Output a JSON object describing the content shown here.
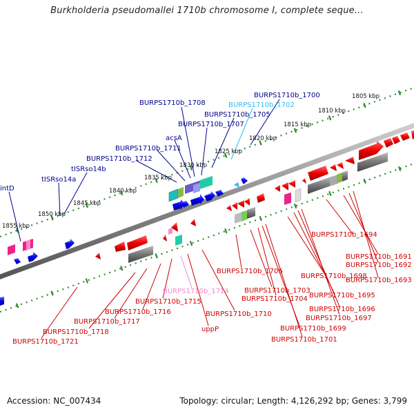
{
  "title": "Burkholderia pseudomallei 1710b chromosome I, complete seque...",
  "footer": {
    "accession": "Accession: NC_007434",
    "summary": "Topology: circular; Length: 4,126,292 bp; Genes: 3,799"
  },
  "colors": {
    "backbone": "#8a8a8a",
    "ticks": "#2e8b2e",
    "forward_gene": "#0000dd",
    "reverse_gene": "#ee0000",
    "label_blue": "#00008b",
    "label_cyan": "#33bbee",
    "label_red": "#cc0000",
    "label_pink": "#ee88cc"
  },
  "scale_labels": [
    "1805 kbp",
    "1810 kbp",
    "1815 kbp",
    "1820 kbp",
    "1825 kbp",
    "1830 kbp",
    "1835 kbp",
    "1840 kbp",
    "1845 kbp",
    "1850 kbp",
    "1855 kbp"
  ],
  "top_labels": [
    {
      "text": "BURPS1710b_1700",
      "color": "blue"
    },
    {
      "text": "BURPS1710b_1702",
      "color": "cyan"
    },
    {
      "text": "BURPS1710b_1705",
      "color": "blue"
    },
    {
      "text": "BURPS1710b_1708",
      "color": "blue"
    },
    {
      "text": "BURPS1710b_1707",
      "color": "blue"
    },
    {
      "text": "acsA",
      "color": "blue"
    },
    {
      "text": "BURPS1710b_1711",
      "color": "blue"
    },
    {
      "text": "BURPS1710b_1712",
      "color": "blue"
    },
    {
      "text": "tISRso14b",
      "color": "blue"
    },
    {
      "text": "tISRso14a",
      "color": "blue"
    },
    {
      "text": "intD",
      "color": "blue"
    }
  ],
  "bottom_labels": [
    {
      "text": "BURPS1710b_1694",
      "color": "red"
    },
    {
      "text": "BURPS1710b_1691",
      "color": "red"
    },
    {
      "text": "BURPS1710b_1692",
      "color": "red"
    },
    {
      "text": "BURPS1710b_1706",
      "color": "red"
    },
    {
      "text": "BURPS1710b_1698",
      "color": "red"
    },
    {
      "text": "BURPS1710b_1693",
      "color": "red"
    },
    {
      "text": "BURPS1710b_1703",
      "color": "red"
    },
    {
      "text": "BURPS1710b_1714",
      "color": "pink"
    },
    {
      "text": "BURPS1710b_1695",
      "color": "red"
    },
    {
      "text": "BURPS1710b_1704",
      "color": "red"
    },
    {
      "text": "BURPS1710b_1715",
      "color": "red"
    },
    {
      "text": "BURPS1710b_1696",
      "color": "red"
    },
    {
      "text": "BURPS1710b_1716",
      "color": "red"
    },
    {
      "text": "BURPS1710b_1710",
      "color": "red"
    },
    {
      "text": "BURPS1710b_1697",
      "color": "red"
    },
    {
      "text": "BURPS1710b_1717",
      "color": "red"
    },
    {
      "text": "uppP",
      "color": "red"
    },
    {
      "text": "BURPS1710b_1699",
      "color": "red"
    },
    {
      "text": "BURPS1710b_1718",
      "color": "red"
    },
    {
      "text": "BURPS1710b_1701",
      "color": "red"
    },
    {
      "text": "BURPS1710b_1721",
      "color": "red"
    }
  ]
}
